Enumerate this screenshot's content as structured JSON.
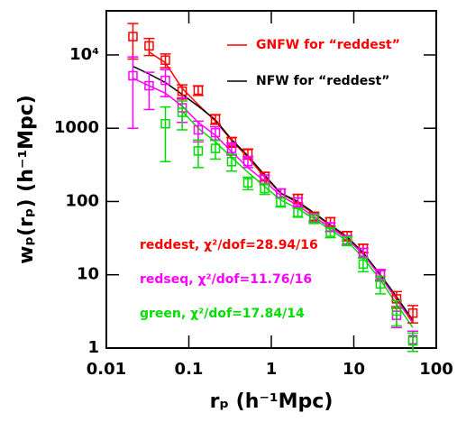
{
  "chart_data": {
    "type": "scatter",
    "x_label": "rₚ  (h⁻¹Mpc)",
    "y_label": "wₚ(rₚ)  (h⁻¹Mpc)",
    "xlim": [
      0.01,
      100
    ],
    "ylim": [
      1,
      40000
    ],
    "xticks": [
      0.01,
      0.1,
      1,
      10,
      100
    ],
    "yticks": [
      1,
      10,
      100,
      1000,
      {
        "value": 10000,
        "label": "10⁴"
      }
    ],
    "log_x": true,
    "log_y": true,
    "series": [
      {
        "name": "GNFW for “reddest”",
        "color": "#ff0000",
        "kind": "line",
        "x": [
          0.033,
          0.052,
          0.083,
          0.13,
          0.21,
          0.33,
          0.52,
          0.83,
          1.3,
          2.1,
          3.3,
          5.2,
          8.3,
          13,
          21,
          33,
          52
        ],
        "values": [
          11000,
          7800,
          3500,
          2100,
          1250,
          680,
          400,
          215,
          130,
          95,
          68,
          47,
          32,
          20,
          10,
          5,
          2.3
        ]
      },
      {
        "name": "NFW for “reddest”",
        "color": "#000000",
        "kind": "line",
        "x": [
          0.021,
          0.033,
          0.052,
          0.083,
          0.13,
          0.21,
          0.33,
          0.52,
          0.83,
          1.3,
          2.1,
          3.3,
          5.2,
          8.3,
          13,
          21,
          33,
          52
        ],
        "values": [
          7000,
          5500,
          4200,
          2900,
          2000,
          1300,
          700,
          420,
          230,
          130,
          100,
          70,
          48,
          33,
          20,
          10,
          5,
          2.4
        ]
      },
      {
        "color": "#ff00ff",
        "kind": "line",
        "x": [
          0.021,
          0.033,
          0.052,
          0.083,
          0.13,
          0.21,
          0.33,
          0.52,
          0.83,
          1.3,
          2.1,
          3.3,
          5.2,
          8.3,
          13,
          21,
          33,
          52
        ],
        "values": [
          4800,
          3800,
          3000,
          2000,
          1200,
          800,
          480,
          290,
          190,
          120,
          88,
          62,
          44,
          31,
          19,
          9.5,
          4.6,
          2.2
        ]
      },
      {
        "color": "#00dd00",
        "kind": "line",
        "x": [
          0.083,
          0.13,
          0.21,
          0.33,
          0.52,
          0.83,
          1.3,
          2.1,
          3.3,
          5.2,
          8.3,
          13,
          21,
          33,
          52
        ],
        "values": [
          1700,
          1000,
          650,
          400,
          250,
          160,
          105,
          80,
          58,
          41,
          29,
          17,
          8.5,
          4,
          1.9
        ]
      },
      {
        "color": "#ff0000",
        "kind": "points",
        "x": [
          0.021,
          0.033,
          0.052,
          0.083,
          0.13,
          0.21,
          0.33,
          0.52,
          0.83,
          1.3,
          2.1,
          3.3,
          5.2,
          8.3,
          13,
          21,
          33,
          52
        ],
        "values": [
          17800,
          13300,
          8500,
          3200,
          3300,
          1330,
          650,
          450,
          220,
          130,
          110,
          63,
          53,
          34,
          23,
          10,
          4.7,
          3.0
        ],
        "errors": [
          9000,
          3500,
          1800,
          700,
          500,
          200,
          100,
          70,
          30,
          18,
          15,
          8,
          7,
          5,
          3,
          1.6,
          1.2,
          0.8
        ]
      },
      {
        "color": "#ff00ff",
        "kind": "points",
        "x": [
          0.021,
          0.033,
          0.052,
          0.083,
          0.13,
          0.21,
          0.33,
          0.52,
          0.83,
          1.3,
          2.1,
          3.3,
          5.2,
          8.3,
          13,
          21,
          33,
          52
        ],
        "values": [
          5200,
          3800,
          4500,
          1900,
          950,
          870,
          530,
          350,
          200,
          130,
          98,
          60,
          45,
          30,
          20,
          10,
          2.8,
          1.3
        ],
        "errors": [
          4200,
          2000,
          1800,
          700,
          300,
          180,
          100,
          60,
          30,
          18,
          14,
          8,
          6,
          4,
          3,
          1.8,
          0.9,
          0.4
        ]
      },
      {
        "color": "#00dd00",
        "kind": "points",
        "x": [
          0.052,
          0.083,
          0.13,
          0.21,
          0.33,
          0.52,
          0.83,
          1.3,
          2.1,
          3.3,
          5.2,
          8.3,
          13,
          21,
          33,
          52
        ],
        "values": [
          1150,
          1650,
          490,
          530,
          350,
          180,
          150,
          98,
          71,
          58,
          38,
          29,
          14,
          7.5,
          3.2,
          1.25
        ],
        "errors": [
          800,
          700,
          200,
          150,
          90,
          35,
          25,
          14,
          10,
          8,
          6,
          4,
          3,
          2,
          1.2,
          0.35
        ]
      }
    ],
    "annotations": [
      {
        "text": "reddest, χ²/dof=28.94/16",
        "color": "#ff0000"
      },
      {
        "text": "redseq, χ²/dof=11.76/16",
        "color": "#ff00ff"
      },
      {
        "text": "green, χ²/dof=17.84/14",
        "color": "#00dd00"
      }
    ]
  }
}
